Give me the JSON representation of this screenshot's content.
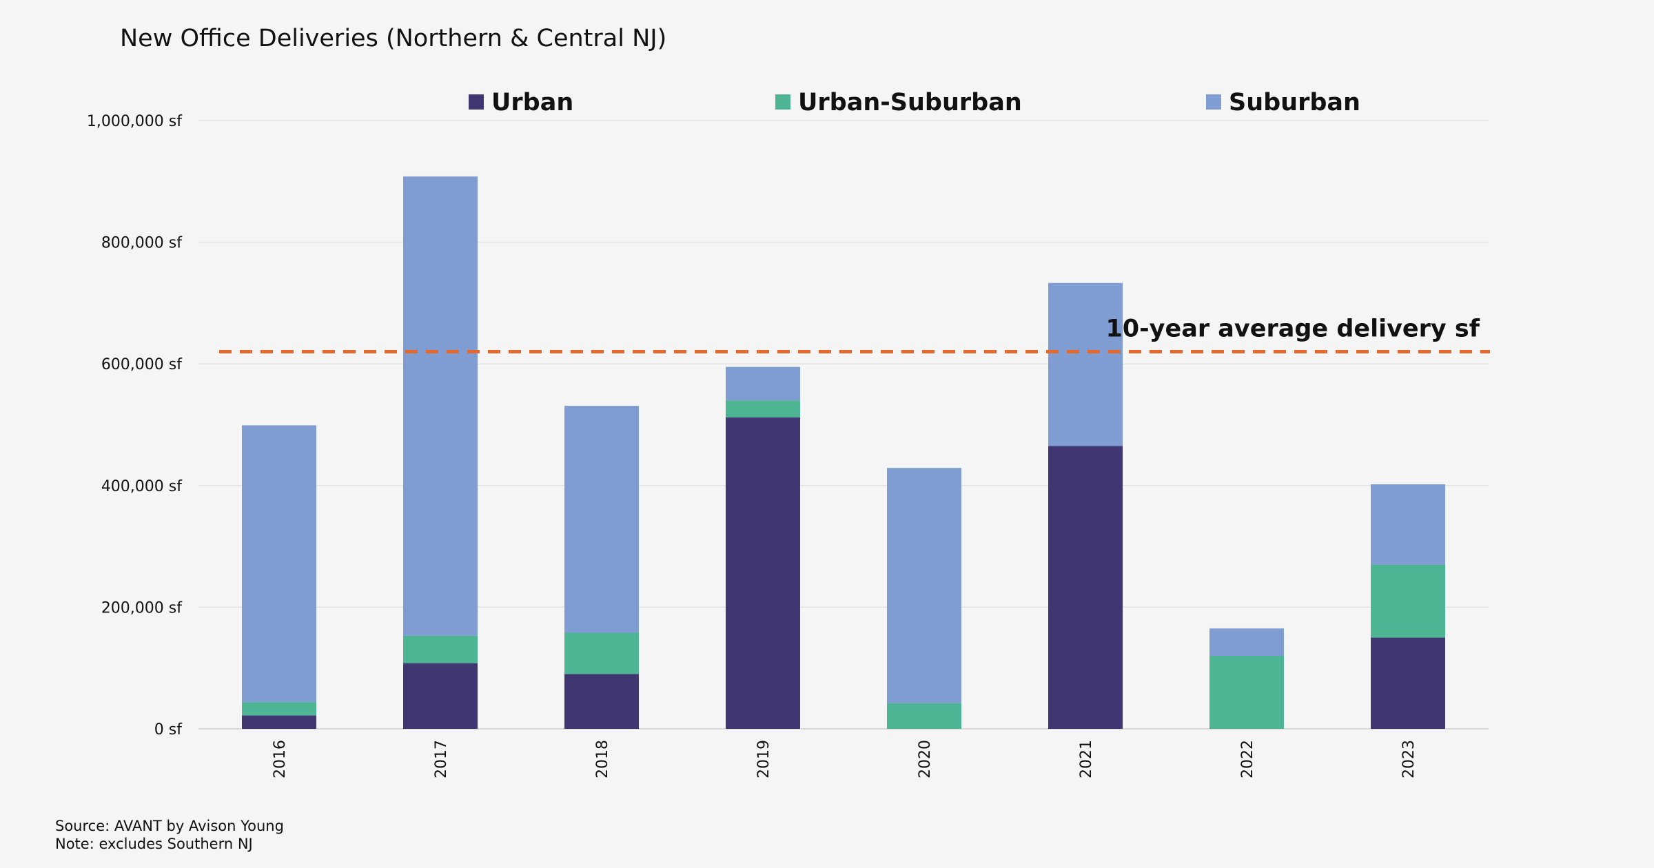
{
  "chart_data": {
    "type": "bar",
    "stacked": true,
    "title": "New Office Deliveries (Northern & Central NJ)",
    "xlabel": "",
    "ylabel": "",
    "categories": [
      "2016",
      "2017",
      "2018",
      "2019",
      "2020",
      "2021",
      "2022",
      "2023"
    ],
    "series": [
      {
        "name": "Urban",
        "color": "#3f3672",
        "values": [
          22000,
          108000,
          90000,
          512000,
          0,
          465000,
          0,
          150000
        ]
      },
      {
        "name": "Urban-Suburban",
        "color": "#4db594",
        "values": [
          22000,
          45000,
          68000,
          28000,
          42000,
          0,
          120000,
          120000
        ]
      },
      {
        "name": "Suburban",
        "color": "#7f9dd3",
        "values": [
          455000,
          755000,
          373000,
          55000,
          387000,
          268000,
          45000,
          132000
        ]
      }
    ],
    "ylim": [
      0,
      1000000
    ],
    "yticks": [
      {
        "value": 0,
        "label": "0 sf"
      },
      {
        "value": 200000,
        "label": "200,000 sf"
      },
      {
        "value": 400000,
        "label": "400,000 sf"
      },
      {
        "value": 600000,
        "label": "600,000 sf"
      },
      {
        "value": 800000,
        "label": "800,000 sf"
      },
      {
        "value": 1000000,
        "label": "1,000,000 sf"
      }
    ],
    "grid": true,
    "legend": "top-center",
    "reference_line": {
      "label": "10-year average delivery sf",
      "value": 620000,
      "color": "#e4692f"
    }
  },
  "footnotes": {
    "source": "Source: AVANT by Avison Young",
    "note": "Note: excludes Southern NJ"
  }
}
